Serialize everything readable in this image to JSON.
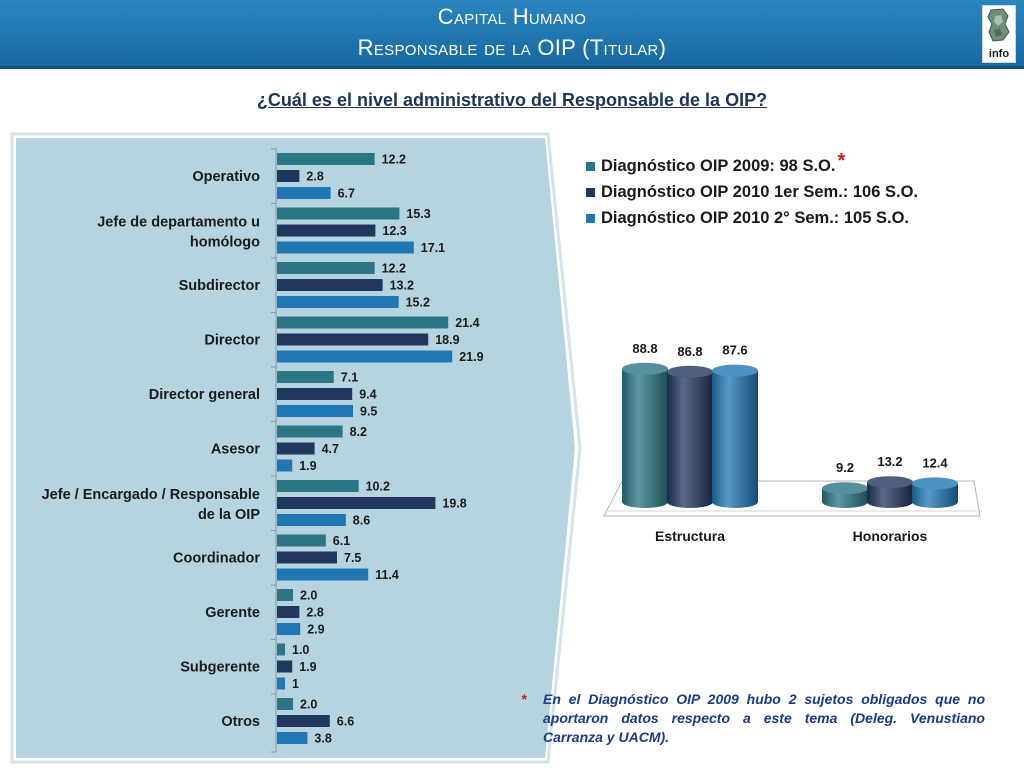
{
  "header": {
    "title_line1": "Capital Humano",
    "title_line2": "Responsable de la OIP (Titular)",
    "logo_text": "info",
    "bg_color": "#1f78b4"
  },
  "question": "¿Cuál es el nivel administrativo del Responsable de la OIP?",
  "note": {
    "mark": "*",
    "text": "En el Diagnóstico OIP 2009 hubo 2 sujetos obligados que no aportaron datos respecto a este tema (Deleg. Venustiano Carranza y UACM)."
  },
  "chart_data": [
    {
      "type": "bar",
      "orientation": "horizontal",
      "categories": [
        "Operativo",
        "Jefe de departamento u homólogo",
        "Subdirector",
        "Director",
        "Director general",
        "Asesor",
        "Jefe / Encargado / Responsable de la OIP",
        "Coordinador",
        "Gerente",
        "Subgerente",
        "Otros"
      ],
      "series": [
        {
          "name": "Diagnóstico OIP 2009: 98 S.O.",
          "color": "#2a7684",
          "values": [
            12.2,
            15.3,
            12.2,
            21.4,
            7.1,
            8.2,
            10.2,
            6.1,
            2.0,
            1.0,
            2.0
          ],
          "labels": [
            "12.2",
            "15.3",
            "12.2",
            "21.4",
            "7.1",
            "8.2",
            "10.2",
            "6.1",
            "2.0",
            "1.0",
            "2.0"
          ]
        },
        {
          "name": "Diagnóstico OIP 2010 1er Sem.: 106 S.O.",
          "color": "#22375e",
          "values": [
            2.8,
            12.3,
            13.2,
            18.9,
            9.4,
            4.7,
            19.8,
            7.5,
            2.8,
            1.9,
            6.6
          ],
          "labels": [
            "2.8",
            "12.3",
            "13.2",
            "18.9",
            "9.4",
            "4.7",
            "19.8",
            "7.5",
            "2.8",
            "1.9",
            "6.6"
          ]
        },
        {
          "name": "Diagnóstico OIP 2010 2° Sem.: 105 S.O.",
          "color": "#1f77b4",
          "values": [
            6.7,
            17.1,
            15.2,
            21.9,
            9.5,
            1.9,
            8.6,
            11.4,
            2.9,
            1.0,
            3.8
          ],
          "labels": [
            "6.7",
            "17.1",
            "15.2",
            "21.9",
            "9.5",
            "1.9",
            "8.6",
            "11.4",
            "2.9",
            "1",
            "3.8"
          ]
        }
      ],
      "xlim": [
        0,
        30
      ],
      "background_color": "#b6d4e0"
    },
    {
      "type": "bar",
      "style": "3d-cylinder",
      "categories": [
        "Estructura",
        "Honorarios"
      ],
      "series": [
        {
          "name": "Diagnóstico OIP 2009: 98 S.O.",
          "color": "#2a7684",
          "values": [
            88.8,
            9.2
          ]
        },
        {
          "name": "Diagnóstico OIP 2010 1er Sem.: 106 S.O.",
          "color": "#22375e",
          "values": [
            86.8,
            13.2
          ]
        },
        {
          "name": "Diagnóstico OIP 2010 2° Sem.: 105 S.O.",
          "color": "#1f77b4",
          "values": [
            87.6,
            12.4
          ]
        }
      ],
      "ylim": [
        0,
        100
      ],
      "legend": {
        "position": "top",
        "asterisk_on": "Diagnóstico OIP 2009: 98 S.O.",
        "asterisk": "*",
        "asterisk_color": "#cc1a1a"
      }
    }
  ]
}
